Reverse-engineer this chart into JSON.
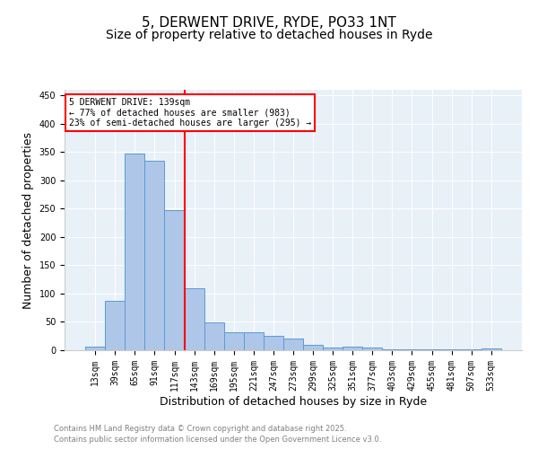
{
  "title1": "5, DERWENT DRIVE, RYDE, PO33 1NT",
  "title2": "Size of property relative to detached houses in Ryde",
  "xlabel": "Distribution of detached houses by size in Ryde",
  "ylabel": "Number of detached properties",
  "categories": [
    "13sqm",
    "39sqm",
    "65sqm",
    "91sqm",
    "117sqm",
    "143sqm",
    "169sqm",
    "195sqm",
    "221sqm",
    "247sqm",
    "273sqm",
    "299sqm",
    "325sqm",
    "351sqm",
    "377sqm",
    "403sqm",
    "429sqm",
    "455sqm",
    "481sqm",
    "507sqm",
    "533sqm"
  ],
  "values": [
    6,
    88,
    348,
    335,
    247,
    110,
    49,
    32,
    32,
    25,
    20,
    10,
    5,
    6,
    4,
    2,
    1,
    1,
    2,
    1,
    3
  ],
  "bar_color": "#aec6e8",
  "bar_edge_color": "#5b9bd5",
  "vline_index": 5,
  "vline_color": "red",
  "annotation_text": "5 DERWENT DRIVE: 139sqm\n← 77% of detached houses are smaller (983)\n23% of semi-detached houses are larger (295) →",
  "annotation_box_color": "red",
  "ylim": [
    0,
    460
  ],
  "yticks": [
    0,
    50,
    100,
    150,
    200,
    250,
    300,
    350,
    400,
    450
  ],
  "bg_color": "#e8f0f8",
  "footer1": "Contains HM Land Registry data © Crown copyright and database right 2025.",
  "footer2": "Contains public sector information licensed under the Open Government Licence v3.0.",
  "title_fontsize": 11,
  "subtitle_fontsize": 10,
  "tick_fontsize": 7,
  "label_fontsize": 9
}
